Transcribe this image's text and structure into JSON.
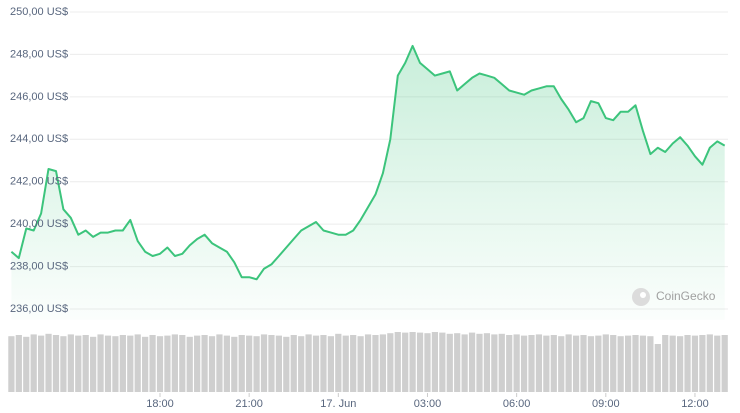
{
  "chart_data": {
    "type": "line",
    "categories": [
      null,
      null,
      null,
      null,
      null,
      null,
      null,
      null,
      null,
      null,
      null,
      null,
      null,
      null,
      null,
      null,
      null,
      null,
      null,
      null,
      "18:00",
      null,
      null,
      null,
      null,
      null,
      null,
      null,
      null,
      null,
      null,
      null,
      "21:00",
      null,
      null,
      null,
      null,
      null,
      null,
      null,
      null,
      null,
      null,
      null,
      "17. Jun",
      null,
      null,
      null,
      null,
      null,
      null,
      null,
      null,
      null,
      null,
      null,
      "03:00",
      null,
      null,
      null,
      null,
      null,
      null,
      null,
      null,
      null,
      null,
      null,
      "06:00",
      null,
      null,
      null,
      null,
      null,
      null,
      null,
      null,
      null,
      null,
      null,
      "09:00",
      null,
      null,
      null,
      null,
      null,
      null,
      null,
      null,
      null,
      null,
      null,
      "12:00",
      null,
      null,
      null,
      null
    ],
    "values": [
      238.7,
      238.4,
      239.8,
      239.7,
      240.5,
      242.6,
      242.5,
      240.7,
      240.3,
      239.5,
      239.7,
      239.4,
      239.6,
      239.6,
      239.7,
      239.7,
      240.2,
      239.2,
      238.7,
      238.5,
      238.6,
      238.9,
      238.5,
      238.6,
      239.0,
      239.3,
      239.5,
      239.1,
      238.9,
      238.7,
      238.2,
      237.5,
      237.5,
      237.4,
      237.9,
      238.1,
      238.5,
      238.9,
      239.3,
      239.7,
      239.9,
      240.1,
      239.7,
      239.6,
      239.5,
      239.5,
      239.7,
      240.2,
      240.8,
      241.4,
      242.4,
      244.0,
      247.0,
      247.6,
      248.4,
      247.6,
      247.3,
      247.0,
      247.1,
      247.2,
      246.3,
      246.6,
      246.9,
      247.1,
      247.0,
      246.9,
      246.6,
      246.3,
      246.2,
      246.1,
      246.3,
      246.4,
      246.5,
      246.5,
      245.9,
      245.4,
      244.8,
      245.0,
      245.8,
      245.7,
      245.0,
      244.9,
      245.3,
      245.3,
      245.6,
      244.4,
      243.3,
      243.6,
      243.4,
      243.8,
      244.1,
      243.7,
      243.2,
      242.8,
      243.6,
      243.9,
      243.7
    ],
    "color": "#3cc47c",
    "ylim": [
      235.5,
      250.3
    ],
    "yticks": [
      {
        "value": 250,
        "label": "250,00 US$"
      },
      {
        "value": 248,
        "label": "248,00 US$"
      },
      {
        "value": 246,
        "label": "246,00 US$"
      },
      {
        "value": 244,
        "label": "244,00 US$"
      },
      {
        "value": 242,
        "label": "242,00 US$"
      },
      {
        "value": 240,
        "label": "240,00 US$"
      },
      {
        "value": 238,
        "label": "238,00 US$"
      },
      {
        "value": 236,
        "label": "236,00 US$"
      }
    ],
    "grid": true,
    "volume": {
      "color": "#cfcfcf",
      "y2lim": [
        0,
        100
      ],
      "values": [
        93,
        95,
        92,
        96,
        94,
        97,
        95,
        93,
        96,
        94,
        95,
        92,
        96,
        94,
        93,
        95,
        94,
        96,
        92,
        95,
        93,
        94,
        96,
        95,
        92,
        94,
        95,
        93,
        96,
        94,
        92,
        95,
        94,
        93,
        96,
        95,
        94,
        92,
        95,
        93,
        96,
        94,
        95,
        93,
        97,
        94,
        95,
        93,
        96,
        95,
        96,
        98,
        100,
        99,
        100,
        99,
        98,
        100,
        99,
        97,
        98,
        96,
        99,
        97,
        98,
        96,
        97,
        95,
        96,
        94,
        95,
        96,
        94,
        95,
        93,
        96,
        94,
        95,
        93,
        94,
        96,
        95,
        93,
        94,
        95,
        94,
        93,
        80,
        95,
        94,
        93,
        95,
        94,
        95,
        96,
        94,
        95
      ]
    },
    "watermark": "CoinGecko"
  }
}
